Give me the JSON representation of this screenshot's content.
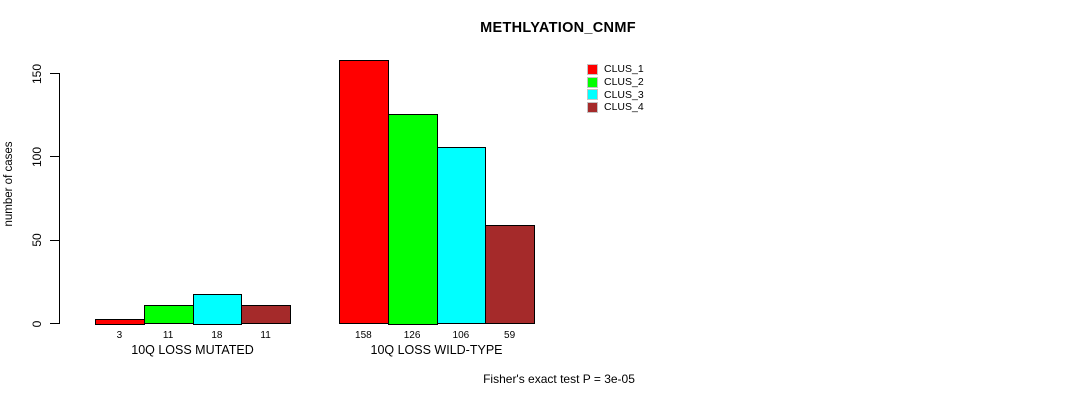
{
  "chart_data": {
    "type": "bar",
    "title": "METHLYATION_CNMF",
    "ylabel": "number of cases",
    "xlabel": "",
    "categories": [
      "10Q LOSS MUTATED",
      "10Q LOSS WILD-TYPE"
    ],
    "series": [
      {
        "name": "CLUS_1",
        "color": "#ff0000",
        "values": [
          3,
          158
        ]
      },
      {
        "name": "CLUS_2",
        "color": "#00ff00",
        "values": [
          11,
          126
        ]
      },
      {
        "name": "CLUS_3",
        "color": "#00ffff",
        "values": [
          18,
          106
        ]
      },
      {
        "name": "CLUS_4",
        "color": "#a52a2a",
        "values": [
          11,
          59
        ]
      }
    ],
    "value_labels_shown": true,
    "yticks": [
      0,
      50,
      100,
      150
    ],
    "ylim": [
      0,
      158
    ],
    "grid": false,
    "legend_position": "top-right",
    "legend_entries": [
      "CLUS_1",
      "CLUS_2",
      "CLUS_3",
      "CLUS_4"
    ],
    "annotation": "Fisher's exact test P = 3e-05",
    "bar_border_color": "#000000",
    "background_color": "#ffffff"
  }
}
